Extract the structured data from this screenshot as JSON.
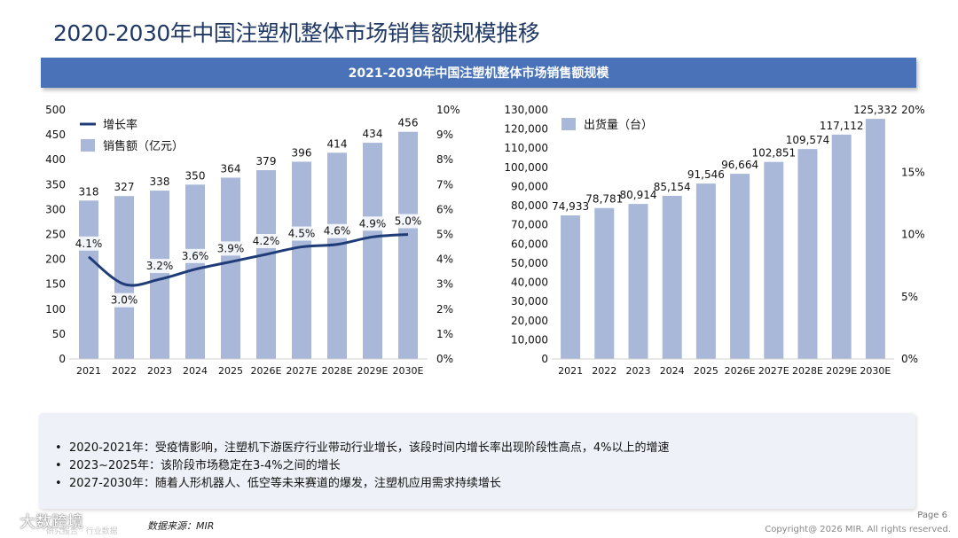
{
  "page_title": "2020-2030年中国注塑机整体市场销售额规模推移",
  "banner_title": "2021-2030年中国注塑机整体市场销售额规模",
  "chart_data": [
    {
      "type": "bar",
      "categories": [
        "2021",
        "2022",
        "2023",
        "2024",
        "2025",
        "2026E",
        "2027E",
        "2028E",
        "2029E",
        "2030E"
      ],
      "series": [
        {
          "name": "销售额（亿元）",
          "type": "bar",
          "axis": "left",
          "values": [
            318,
            327,
            338,
            350,
            364,
            379,
            396,
            414,
            434,
            456
          ],
          "labels": [
            "318",
            "327",
            "338",
            "350",
            "364",
            "379",
            "396",
            "414",
            "434",
            "456"
          ]
        },
        {
          "name": "增长率",
          "type": "line",
          "axis": "right",
          "values": [
            4.1,
            3.0,
            3.2,
            3.6,
            3.9,
            4.2,
            4.5,
            4.6,
            4.9,
            5.0
          ],
          "labels": [
            "4.1%",
            "3.0%",
            "3.2%",
            "3.6%",
            "3.9%",
            "4.2%",
            "4.5%",
            "4.6%",
            "4.9%",
            "5.0%"
          ]
        }
      ],
      "ylim": [
        0,
        500
      ],
      "yticks": [
        "0",
        "50",
        "100",
        "150",
        "200",
        "250",
        "300",
        "350",
        "400",
        "450",
        "500"
      ],
      "y2lim": [
        0,
        10
      ],
      "y2ticks": [
        "0%",
        "1%",
        "2%",
        "3%",
        "4%",
        "5%",
        "6%",
        "7%",
        "8%",
        "9%",
        "10%"
      ],
      "legend": [
        {
          "name": "增长率",
          "kind": "line"
        },
        {
          "name": "销售额（亿元）",
          "kind": "bar"
        }
      ],
      "colors": {
        "bar": "#a9b8d8",
        "line": "#1f3c78"
      }
    },
    {
      "type": "bar",
      "categories": [
        "2021",
        "2022",
        "2023",
        "2024",
        "2025",
        "2026E",
        "2027E",
        "2028E",
        "2029E",
        "2030E"
      ],
      "series": [
        {
          "name": "出货量（台）",
          "type": "bar",
          "axis": "left",
          "values": [
            74933,
            78781,
            80914,
            85154,
            91546,
            96664,
            102851,
            109574,
            117112,
            125332
          ],
          "labels": [
            "74,933",
            "78,781",
            "80,914",
            "85,154",
            "91,546",
            "96,664",
            "102,851",
            "109,574",
            "117,112",
            "125,332"
          ]
        }
      ],
      "ylim": [
        0,
        130000
      ],
      "yticks": [
        "0",
        "10,000",
        "20,000",
        "30,000",
        "40,000",
        "50,000",
        "60,000",
        "70,000",
        "80,000",
        "90,000",
        "100,000",
        "110,000",
        "120,000",
        "130,000"
      ],
      "y2lim": [
        0,
        20
      ],
      "y2ticks": [
        "0%",
        "5%",
        "10%",
        "15%",
        "20%"
      ],
      "legend": [
        {
          "name": "出货量（台）",
          "kind": "bar"
        }
      ],
      "colors": {
        "bar": "#a9b8d8"
      }
    }
  ],
  "notes": [
    "2020-2021年：受疫情影响，注塑机下游医疗行业带动行业增长，该段时间内增长率出现阶段性高点，4%以上的增速",
    "2023~2025年：该阶段市场稳定在3-4%之间的增长",
    "2027-2030年：随着人形机器人、低空等未来赛道的爆发，注塑机应用需求持续增长"
  ],
  "source": "数据来源：MIR",
  "watermark": "大数跨境",
  "watermark_small": "研究报告 · 行业数据",
  "page_number": "Page 6",
  "copyright": "Copyright@ 2026 MIR. All rights reserved."
}
